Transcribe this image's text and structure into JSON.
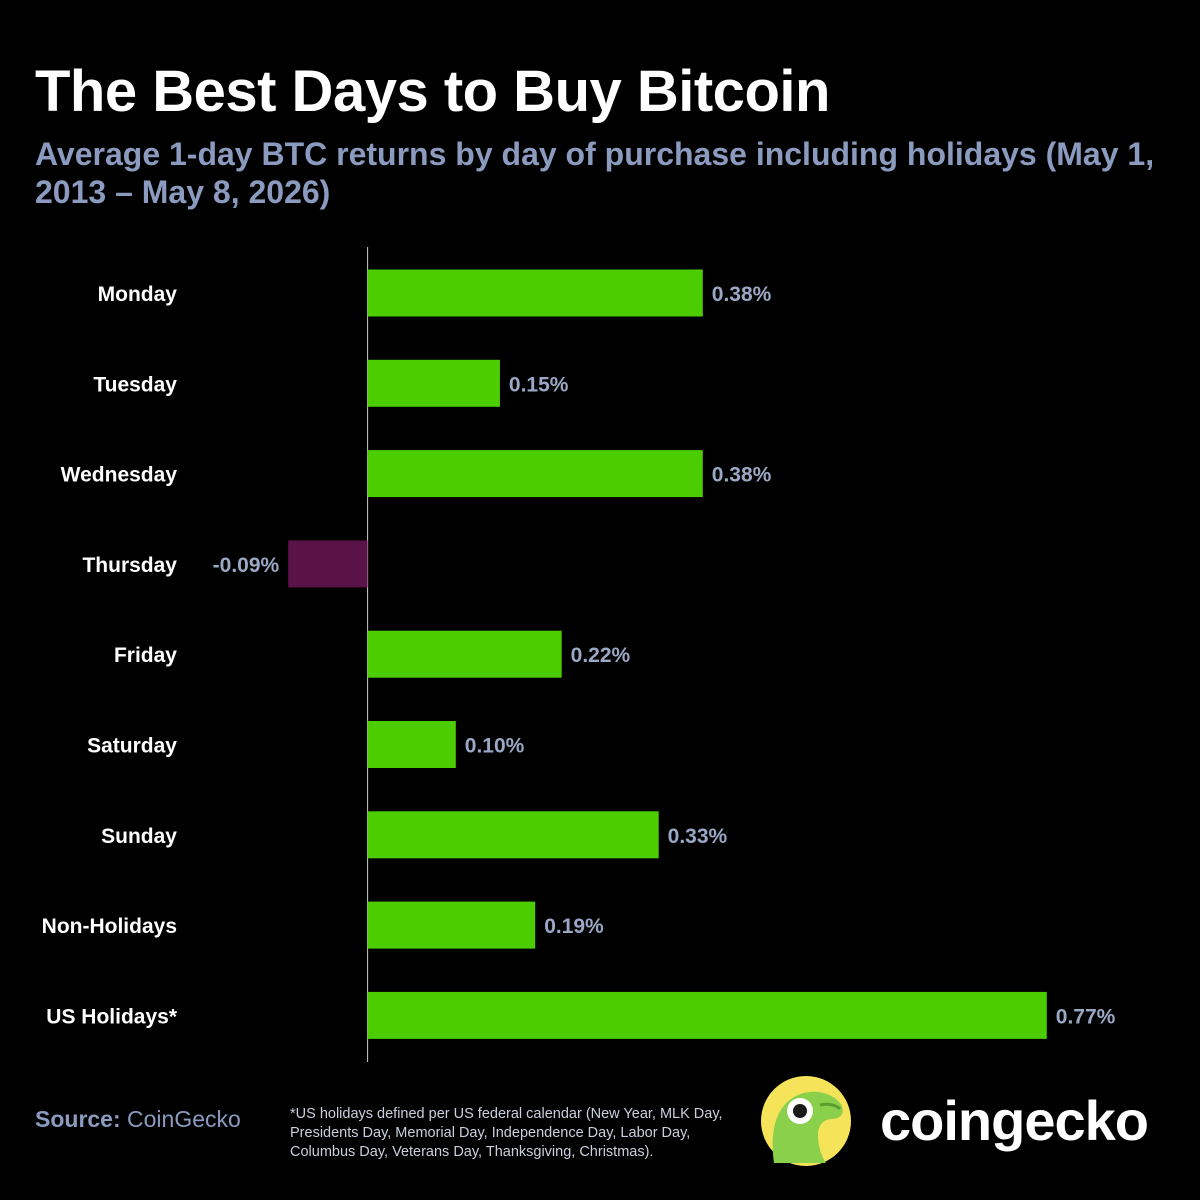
{
  "title": "The Best Days to Buy Bitcoin",
  "subtitle": "Average 1-day BTC returns by day of purchase including holidays (May 1, 2013 – May 8, 2026)",
  "footer": {
    "source_label": "Source:",
    "source_value": "CoinGecko",
    "footnote": "*US holidays defined per US federal calendar (New Year, MLK Day, Presidents Day, Memorial Day, Independence Day, Labor Day, Columbus Day, Veterans Day, Thanksgiving, Christmas).",
    "brand": "coingecko"
  },
  "colors": {
    "positive": "#4ccd00",
    "negative": "#5a1346",
    "value_label": "#9aa8c5",
    "axis": "#cccccc",
    "background": "#000000"
  },
  "chart_data": {
    "type": "bar",
    "orientation": "horizontal",
    "categories": [
      "Monday",
      "Tuesday",
      "Wednesday",
      "Thursday",
      "Friday",
      "Saturday",
      "Sunday",
      "Non-Holidays",
      "US Holidays*"
    ],
    "values": [
      0.38,
      0.15,
      0.38,
      -0.09,
      0.22,
      0.1,
      0.33,
      0.19,
      0.77
    ],
    "value_labels": [
      "0.38%",
      "0.15%",
      "0.38%",
      "-0.09%",
      "0.22%",
      "0.10%",
      "0.33%",
      "0.19%",
      "0.77%"
    ],
    "unit": "%",
    "xlim": [
      -0.19,
      0.87
    ]
  }
}
